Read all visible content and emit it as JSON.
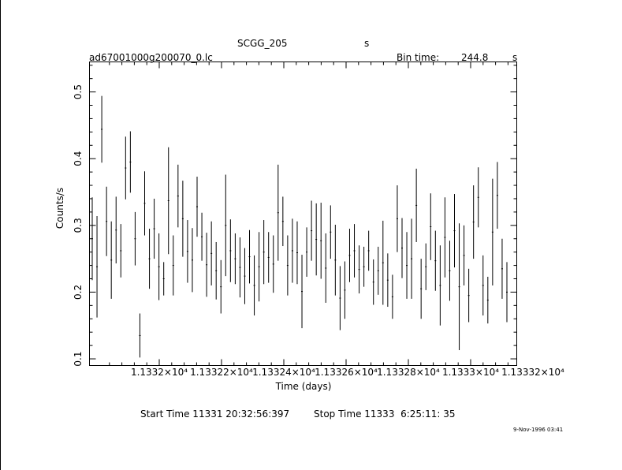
{
  "header": {
    "object_name": "SCGG_205",
    "object_unit": "s",
    "file_name": "ad67001000g200070_0.lc",
    "bin_time_label": "Bin time:",
    "bin_time_value": "244.8",
    "bin_time_unit": "s"
  },
  "footer": {
    "start_time": "Start Time 11331 20:32:56:397",
    "stop_time": "Stop Time 11333  6:25:11: 35",
    "date_stamp": "9-Nov-1996 03:41"
  },
  "colors": {
    "foreground": "#000000",
    "background": "#ffffff"
  },
  "chart_data": {
    "type": "scatter",
    "title": "SCGG_205",
    "xlabel": "Time (days)",
    "ylabel": "Counts/s",
    "ylim": [
      0.09,
      0.545
    ],
    "y_ticks": [
      {
        "value": 0.1,
        "label": "0.1"
      },
      {
        "value": 0.2,
        "label": "0.2"
      },
      {
        "value": 0.3,
        "label": "0.3"
      },
      {
        "value": 0.4,
        "label": "0.4"
      },
      {
        "value": 0.5,
        "label": "0.5"
      }
    ],
    "x_tick_labels": [
      "1.1332×10⁴",
      "1.13322×10⁴",
      "1.13324×10⁴",
      "1.13326×10⁴",
      "1.13328×10⁴",
      "1.1333×10⁴",
      "1.13332×10⁴"
    ],
    "grid": false,
    "error_bars": true,
    "points": [
      {
        "i": 0,
        "y": 0.28,
        "err": 0.062
      },
      {
        "i": 1,
        "y": 0.238,
        "err": 0.076
      },
      {
        "i": 2,
        "y": 0.444,
        "err": 0.05
      },
      {
        "i": 3,
        "y": 0.306,
        "err": 0.052
      },
      {
        "i": 4,
        "y": 0.248,
        "err": 0.058
      },
      {
        "i": 5,
        "y": 0.293,
        "err": 0.05
      },
      {
        "i": 6,
        "y": 0.262,
        "err": 0.04
      },
      {
        "i": 7,
        "y": 0.386,
        "err": 0.047
      },
      {
        "i": 8,
        "y": 0.395,
        "err": 0.046
      },
      {
        "i": 9,
        "y": 0.28,
        "err": 0.04
      },
      {
        "i": 10,
        "y": 0.135,
        "err": 0.033
      },
      {
        "i": 11,
        "y": 0.333,
        "err": 0.048
      },
      {
        "i": 12,
        "y": 0.25,
        "err": 0.045
      },
      {
        "i": 13,
        "y": 0.295,
        "err": 0.045
      },
      {
        "i": 14,
        "y": 0.238,
        "err": 0.05
      },
      {
        "i": 15,
        "y": 0.22,
        "err": 0.025
      },
      {
        "i": 16,
        "y": 0.337,
        "err": 0.08
      },
      {
        "i": 17,
        "y": 0.24,
        "err": 0.045
      },
      {
        "i": 18,
        "y": 0.344,
        "err": 0.047
      },
      {
        "i": 19,
        "y": 0.31,
        "err": 0.057
      },
      {
        "i": 20,
        "y": 0.261,
        "err": 0.047
      },
      {
        "i": 21,
        "y": 0.248,
        "err": 0.048
      },
      {
        "i": 22,
        "y": 0.328,
        "err": 0.045
      },
      {
        "i": 23,
        "y": 0.283,
        "err": 0.036
      },
      {
        "i": 24,
        "y": 0.241,
        "err": 0.048
      },
      {
        "i": 25,
        "y": 0.258,
        "err": 0.048
      },
      {
        "i": 26,
        "y": 0.232,
        "err": 0.043
      },
      {
        "i": 27,
        "y": 0.208,
        "err": 0.04
      },
      {
        "i": 28,
        "y": 0.3,
        "err": 0.076
      },
      {
        "i": 29,
        "y": 0.262,
        "err": 0.047
      },
      {
        "i": 30,
        "y": 0.25,
        "err": 0.038
      },
      {
        "i": 31,
        "y": 0.237,
        "err": 0.045
      },
      {
        "i": 32,
        "y": 0.224,
        "err": 0.042
      },
      {
        "i": 33,
        "y": 0.253,
        "err": 0.04
      },
      {
        "i": 34,
        "y": 0.21,
        "err": 0.045
      },
      {
        "i": 35,
        "y": 0.238,
        "err": 0.052
      },
      {
        "i": 36,
        "y": 0.26,
        "err": 0.048
      },
      {
        "i": 37,
        "y": 0.252,
        "err": 0.038
      },
      {
        "i": 38,
        "y": 0.242,
        "err": 0.043
      },
      {
        "i": 39,
        "y": 0.319,
        "err": 0.072
      },
      {
        "i": 40,
        "y": 0.306,
        "err": 0.037
      },
      {
        "i": 41,
        "y": 0.24,
        "err": 0.045
      },
      {
        "i": 42,
        "y": 0.262,
        "err": 0.048
      },
      {
        "i": 43,
        "y": 0.259,
        "err": 0.047
      },
      {
        "i": 44,
        "y": 0.201,
        "err": 0.055
      },
      {
        "i": 45,
        "y": 0.26,
        "err": 0.037
      },
      {
        "i": 46,
        "y": 0.292,
        "err": 0.045
      },
      {
        "i": 47,
        "y": 0.279,
        "err": 0.054
      },
      {
        "i": 48,
        "y": 0.277,
        "err": 0.057
      },
      {
        "i": 49,
        "y": 0.236,
        "err": 0.052
      },
      {
        "i": 50,
        "y": 0.29,
        "err": 0.04
      },
      {
        "i": 51,
        "y": 0.248,
        "err": 0.053
      },
      {
        "i": 52,
        "y": 0.191,
        "err": 0.048
      },
      {
        "i": 53,
        "y": 0.203,
        "err": 0.043
      },
      {
        "i": 54,
        "y": 0.255,
        "err": 0.04
      },
      {
        "i": 55,
        "y": 0.262,
        "err": 0.04
      },
      {
        "i": 56,
        "y": 0.234,
        "err": 0.036
      },
      {
        "i": 57,
        "y": 0.238,
        "err": 0.03
      },
      {
        "i": 58,
        "y": 0.262,
        "err": 0.03
      },
      {
        "i": 59,
        "y": 0.215,
        "err": 0.034
      },
      {
        "i": 60,
        "y": 0.232,
        "err": 0.036
      },
      {
        "i": 61,
        "y": 0.244,
        "err": 0.063
      },
      {
        "i": 62,
        "y": 0.218,
        "err": 0.04
      },
      {
        "i": 63,
        "y": 0.193,
        "err": 0.033
      },
      {
        "i": 64,
        "y": 0.31,
        "err": 0.05
      },
      {
        "i": 65,
        "y": 0.266,
        "err": 0.045
      },
      {
        "i": 66,
        "y": 0.24,
        "err": 0.05
      },
      {
        "i": 67,
        "y": 0.25,
        "err": 0.06
      },
      {
        "i": 68,
        "y": 0.33,
        "err": 0.055
      },
      {
        "i": 69,
        "y": 0.205,
        "err": 0.045
      },
      {
        "i": 70,
        "y": 0.238,
        "err": 0.035
      },
      {
        "i": 71,
        "y": 0.298,
        "err": 0.05
      },
      {
        "i": 72,
        "y": 0.247,
        "err": 0.045
      },
      {
        "i": 73,
        "y": 0.21,
        "err": 0.06
      },
      {
        "i": 74,
        "y": 0.282,
        "err": 0.06
      },
      {
        "i": 75,
        "y": 0.232,
        "err": 0.045
      },
      {
        "i": 76,
        "y": 0.292,
        "err": 0.055
      },
      {
        "i": 77,
        "y": 0.208,
        "err": 0.095
      },
      {
        "i": 78,
        "y": 0.255,
        "err": 0.045
      },
      {
        "i": 79,
        "y": 0.195,
        "err": 0.04
      },
      {
        "i": 80,
        "y": 0.305,
        "err": 0.055
      },
      {
        "i": 81,
        "y": 0.342,
        "err": 0.045
      },
      {
        "i": 82,
        "y": 0.21,
        "err": 0.045
      },
      {
        "i": 83,
        "y": 0.188,
        "err": 0.035
      },
      {
        "i": 84,
        "y": 0.29,
        "err": 0.08
      },
      {
        "i": 85,
        "y": 0.345,
        "err": 0.05
      },
      {
        "i": 86,
        "y": 0.235,
        "err": 0.045
      },
      {
        "i": 87,
        "y": 0.2,
        "err": 0.045
      }
    ]
  }
}
